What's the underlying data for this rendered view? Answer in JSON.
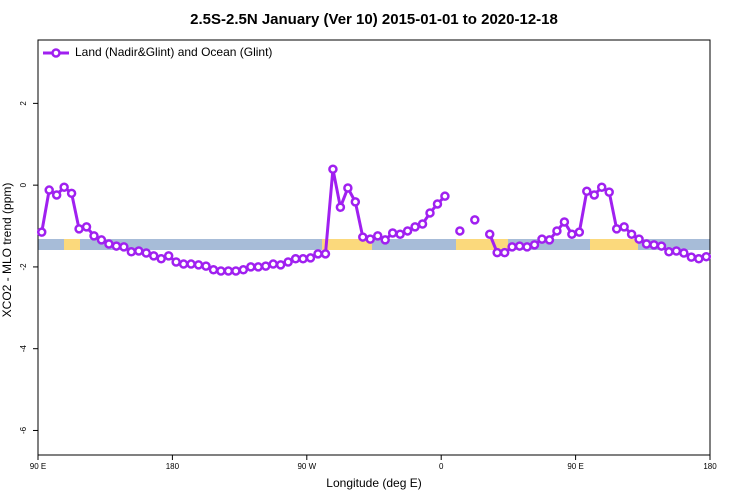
{
  "chart_data": {
    "type": "line",
    "title": "2.5S-2.5N January (Ver 10)   2015-01-01 to 2020-12-18",
    "xlabel": "Longitude (deg E)",
    "ylabel": "XCO2 - MLO trend (ppm)",
    "xlim": [
      90,
      540
    ],
    "ylim": [
      -6.6,
      3.55
    ],
    "xticks": [
      {
        "value": 90,
        "label": "90 E"
      },
      180,
      {
        "value": 270,
        "label": "90 W"
      },
      {
        "value": 360,
        "label": "0"
      },
      {
        "value": 450,
        "label": "90 E"
      },
      {
        "value": 540,
        "label": "180"
      }
    ],
    "yticks": [
      -6,
      -4,
      -2,
      0,
      2
    ],
    "legend": "top-left",
    "x": [
      92.5,
      97.5,
      102.5,
      107.5,
      112.5,
      117.5,
      122.5,
      127.5,
      132.5,
      137.5,
      142.5,
      147.5,
      152.5,
      157.5,
      162.5,
      167.5,
      172.5,
      177.5,
      182.5,
      187.5,
      192.5,
      197.5,
      202.5,
      207.5,
      212.5,
      217.5,
      222.5,
      227.5,
      232.5,
      237.5,
      242.5,
      247.5,
      252.5,
      257.5,
      262.5,
      267.5,
      272.5,
      277.5,
      282.5,
      287.5,
      292.5,
      297.5,
      302.5,
      307.5,
      312.5,
      317.5,
      322.5,
      327.5,
      332.5,
      337.5,
      342.5,
      347.5,
      352.5,
      357.5,
      362.5,
      367.5,
      372.5,
      377.5,
      382.5,
      387.5,
      392.5,
      397.5,
      402.5,
      407.5,
      412.5,
      417.5,
      422.5,
      427.5,
      432.5,
      437.5,
      442.5,
      447.5,
      452.5,
      457.5,
      462.5,
      467.5,
      472.5,
      477.5,
      482.5,
      487.5,
      492.5,
      497.5,
      502.5,
      507.5,
      512.5,
      517.5,
      522.5,
      527.5,
      532.5,
      537.5
    ],
    "series": [
      {
        "name": "Land (Nadir&Glint) and Ocean (Glint)",
        "color": "#a020f0",
        "values": [
          -1.15,
          -0.12,
          -0.24,
          -0.05,
          -0.2,
          -1.07,
          -1.02,
          -1.24,
          -1.34,
          -1.44,
          -1.49,
          -1.51,
          -1.63,
          -1.61,
          -1.66,
          -1.73,
          -1.8,
          -1.73,
          -1.88,
          -1.93,
          -1.93,
          -1.95,
          -1.98,
          -2.07,
          -2.1,
          -2.1,
          -2.1,
          -2.07,
          -2.0,
          -2.0,
          -1.98,
          -1.93,
          -1.95,
          -1.88,
          -1.8,
          -1.8,
          -1.78,
          -1.68,
          -1.68,
          0.39,
          -0.54,
          -0.07,
          -0.41,
          -1.27,
          -1.32,
          -1.24,
          -1.34,
          -1.17,
          -1.2,
          -1.12,
          -1.02,
          -0.95,
          -0.68,
          -0.46,
          -0.27,
          null,
          -1.12,
          null,
          -0.85,
          null,
          -1.2,
          -1.65,
          -1.65,
          -1.51,
          -1.49,
          -1.51,
          -1.46,
          -1.32,
          -1.34,
          -1.12,
          -0.9,
          -1.2,
          -1.15,
          -0.15,
          -0.24,
          -0.05,
          -0.17,
          -1.07,
          -1.02,
          -1.2,
          -1.32,
          -1.44,
          -1.46,
          -1.49,
          -1.63,
          -1.61,
          -1.66,
          -1.76,
          -1.8,
          -1.75
        ]
      }
    ]
  }
}
